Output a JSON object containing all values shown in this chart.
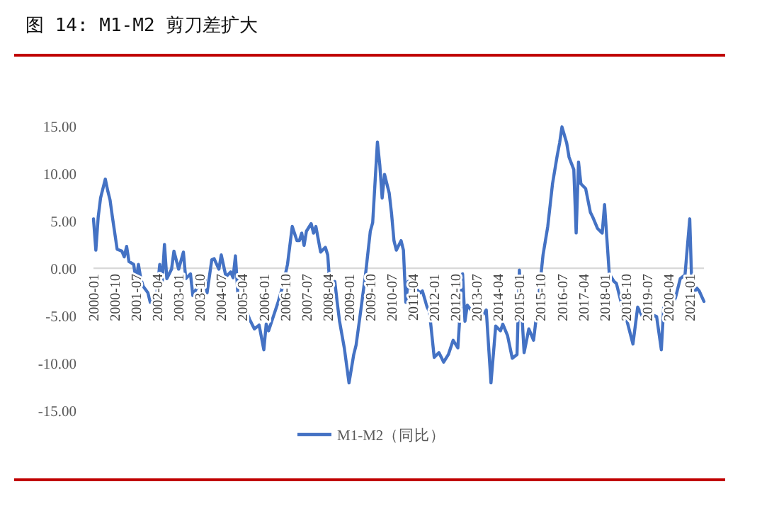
{
  "chart_data": {
    "type": "line",
    "title": "图 14: M1-M2 剪刀差扩大",
    "x": [
      "2000-01",
      "2000-02",
      "2000-03",
      "2000-04",
      "2000-06",
      "2000-07",
      "2000-08",
      "2000-09",
      "2000-11",
      "2001-01",
      "2001-02",
      "2001-03",
      "2001-04",
      "2001-06",
      "2001-07",
      "2001-08",
      "2001-09",
      "2001-10",
      "2001-12",
      "2002-01",
      "2002-02",
      "2002-03",
      "2002-05",
      "2002-06",
      "2002-07",
      "2002-08",
      "2002-10",
      "2002-11",
      "2003-01",
      "2003-03",
      "2003-04",
      "2003-06",
      "2003-07",
      "2003-09",
      "2003-11",
      "2003-12",
      "2004-01",
      "2004-03",
      "2004-04",
      "2004-06",
      "2004-07",
      "2004-09",
      "2004-11",
      "2004-12",
      "2005-01",
      "2005-02",
      "2005-03",
      "2005-05",
      "2005-07",
      "2005-09",
      "2005-11",
      "2006-01",
      "2006-02",
      "2006-03",
      "2006-05",
      "2006-07",
      "2006-09",
      "2006-11",
      "2007-01",
      "2007-03",
      "2007-04",
      "2007-05",
      "2007-06",
      "2007-07",
      "2007-09",
      "2007-10",
      "2007-11",
      "2008-01",
      "2008-03",
      "2008-04",
      "2008-05",
      "2008-07",
      "2008-08",
      "2008-09",
      "2008-11",
      "2009-01",
      "2009-03",
      "2009-04",
      "2009-06",
      "2009-08",
      "2009-10",
      "2009-11",
      "2010-01",
      "2010-02",
      "2010-03",
      "2010-04",
      "2010-06",
      "2010-07",
      "2010-08",
      "2010-09",
      "2010-11",
      "2010-12",
      "2011-01",
      "2011-02",
      "2011-03",
      "2011-05",
      "2011-07",
      "2011-08",
      "2011-10",
      "2011-11",
      "2012-01",
      "2012-03",
      "2012-05",
      "2012-07",
      "2012-09",
      "2012-11",
      "2013-01",
      "2013-02",
      "2013-03",
      "2013-06",
      "2013-09",
      "2013-11",
      "2014-01",
      "2014-03",
      "2014-05",
      "2014-06",
      "2014-08",
      "2014-10",
      "2014-12",
      "2015-01",
      "2015-03",
      "2015-05",
      "2015-07",
      "2015-09",
      "2015-11",
      "2016-01",
      "2016-03",
      "2016-05",
      "2016-06",
      "2016-07",
      "2016-09",
      "2016-10",
      "2016-12",
      "2017-01",
      "2017-02",
      "2017-03",
      "2017-05",
      "2017-07",
      "2017-08",
      "2017-10",
      "2017-12",
      "2018-01",
      "2018-03",
      "2018-05",
      "2018-06",
      "2018-08",
      "2018-10",
      "2019-01",
      "2019-03",
      "2019-05",
      "2019-07",
      "2019-09",
      "2019-11",
      "2020-01",
      "2020-02",
      "2020-04",
      "2020-07",
      "2020-09",
      "2020-11",
      "2021-01",
      "2021-02",
      "2021-04",
      "2021-05",
      "2021-07"
    ],
    "series": [
      {
        "name": "M1-M2（同比）",
        "color": "#4472c4",
        "values": [
          5.2,
          1.9,
          5.4,
          7.4,
          9.4,
          8.2,
          7.2,
          5.4,
          2.0,
          1.8,
          1.2,
          2.3,
          0.7,
          0.4,
          -1.4,
          0.4,
          -1.1,
          -1.9,
          -2.6,
          -3.6,
          -3.1,
          -4.6,
          0.4,
          -1.6,
          2.5,
          -1.1,
          -0.1,
          1.8,
          -0.1,
          1.7,
          -1.1,
          -0.6,
          -2.9,
          -1.9,
          -2.1,
          -1.0,
          -2.6,
          0.9,
          1.0,
          -0.1,
          1.4,
          -0.9,
          -0.4,
          -1.0,
          1.3,
          -2.6,
          -2.9,
          -4.1,
          -5.4,
          -6.4,
          -6.0,
          -8.6,
          -5.9,
          -6.6,
          -5.1,
          -3.6,
          -1.9,
          0.4,
          4.4,
          2.9,
          2.9,
          3.7,
          2.4,
          3.9,
          4.7,
          3.7,
          4.4,
          1.7,
          2.2,
          1.4,
          -2.1,
          -1.4,
          -3.6,
          -5.6,
          -8.4,
          -12.1,
          -9.1,
          -8.1,
          -4.4,
          -0.6,
          3.9,
          4.8,
          13.3,
          10.9,
          7.4,
          9.9,
          7.9,
          5.7,
          2.9,
          1.9,
          2.9,
          1.9,
          -3.6,
          -1.4,
          -2.1,
          -2.1,
          -2.6,
          -2.4,
          -4.1,
          -4.6,
          -9.4,
          -8.9,
          -9.9,
          -9.1,
          -7.6,
          -8.4,
          -0.6,
          -5.6,
          -3.9,
          -4.9,
          -5.1,
          -4.4,
          -12.1,
          -6.1,
          -6.6,
          -5.9,
          -7.1,
          -9.5,
          -9.1,
          -0.2,
          -8.9,
          -6.4,
          -7.6,
          -3.4,
          1.4,
          4.4,
          8.9,
          11.9,
          13.2,
          14.9,
          13.2,
          11.7,
          10.4,
          3.7,
          11.2,
          8.9,
          8.4,
          5.9,
          5.4,
          4.2,
          3.7,
          6.7,
          -0.6,
          -1.4,
          -1.6,
          -3.6,
          -5.1,
          -8.0,
          -4.1,
          -5.1,
          -4.1,
          -4.9,
          -5.1,
          -8.6,
          -4.1,
          -4.6,
          -3.1,
          -1.1,
          -0.7,
          5.2,
          -2.9,
          -2.1,
          -2.4,
          -3.5
        ]
      }
    ],
    "xlim": [
      "2000-01",
      "2021-07"
    ],
    "xticks": [
      "2000-01",
      "2000-10",
      "2001-07",
      "2002-04",
      "2003-01",
      "2003-10",
      "2004-07",
      "2005-04",
      "2006-01",
      "2006-10",
      "2007-07",
      "2008-04",
      "2009-01",
      "2009-10",
      "2010-07",
      "2011-04",
      "2012-01",
      "2012-10",
      "2013-07",
      "2014-04",
      "2015-01",
      "2015-10",
      "2016-07",
      "2017-04",
      "2018-01",
      "2018-10",
      "2019-07",
      "2020-04",
      "2021-01"
    ],
    "ylim": [
      -15,
      15
    ],
    "yticks": [
      {
        "value": 15,
        "label": "15.00"
      },
      {
        "value": 10,
        "label": "10.00"
      },
      {
        "value": 5,
        "label": "5.00"
      },
      {
        "value": 0,
        "label": "0.00"
      },
      {
        "value": -5,
        "label": "-5.00"
      },
      {
        "value": -10,
        "label": "-10.00"
      },
      {
        "value": -15,
        "label": "-15.00"
      }
    ],
    "grid": false,
    "legend": "bottom",
    "marker": "none",
    "line_style": "solid"
  }
}
